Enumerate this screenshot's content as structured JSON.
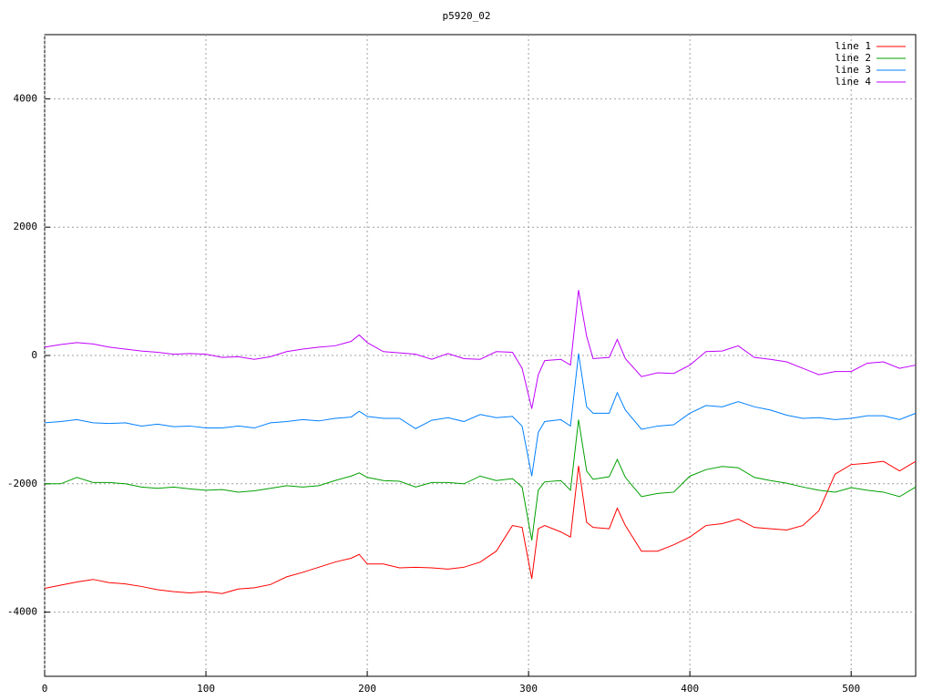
{
  "chart_data": {
    "type": "line",
    "title": "p5920_02",
    "x": [
      0,
      10,
      20,
      30,
      40,
      50,
      60,
      70,
      80,
      90,
      100,
      110,
      120,
      130,
      140,
      150,
      160,
      170,
      180,
      190,
      195,
      200,
      210,
      220,
      230,
      240,
      250,
      260,
      270,
      280,
      290,
      296,
      302,
      306,
      310,
      320,
      326,
      331,
      336,
      340,
      350,
      355,
      360,
      370,
      380,
      390,
      400,
      410,
      420,
      430,
      440,
      450,
      460,
      470,
      480,
      490,
      500,
      510,
      520,
      530,
      540
    ],
    "series": [
      {
        "name": "line 1",
        "color": "#ff0000",
        "values": [
          -3630,
          -3580,
          -3530,
          -3490,
          -3540,
          -3560,
          -3600,
          -3650,
          -3680,
          -3700,
          -3680,
          -3710,
          -3640,
          -3620,
          -3570,
          -3450,
          -3380,
          -3300,
          -3220,
          -3160,
          -3100,
          -3250,
          -3250,
          -3310,
          -3300,
          -3310,
          -3330,
          -3300,
          -3220,
          -3050,
          -2650,
          -2680,
          -3480,
          -2700,
          -2650,
          -2750,
          -2830,
          -1720,
          -2600,
          -2680,
          -2700,
          -2380,
          -2650,
          -3050,
          -3050,
          -2950,
          -2830,
          -2650,
          -2620,
          -2550,
          -2680,
          -2700,
          -2720,
          -2650,
          -2420,
          -1850,
          -1700,
          -1680,
          -1650,
          -1800,
          -1650
        ]
      },
      {
        "name": "line 2",
        "color": "#00a000",
        "values": [
          -2000,
          -2000,
          -1900,
          -1980,
          -1980,
          -2000,
          -2050,
          -2070,
          -2050,
          -2080,
          -2100,
          -2090,
          -2130,
          -2110,
          -2070,
          -2030,
          -2050,
          -2030,
          -1950,
          -1880,
          -1830,
          -1900,
          -1950,
          -1960,
          -2050,
          -1980,
          -1980,
          -2000,
          -1880,
          -1950,
          -1920,
          -2050,
          -2880,
          -2100,
          -1970,
          -1950,
          -2100,
          -1000,
          -1800,
          -1930,
          -1890,
          -1620,
          -1900,
          -2200,
          -2150,
          -2130,
          -1880,
          -1780,
          -1730,
          -1750,
          -1900,
          -1950,
          -1990,
          -2050,
          -2100,
          -2130,
          -2060,
          -2100,
          -2130,
          -2200,
          -2050
        ]
      },
      {
        "name": "line 3",
        "color": "#0080ff",
        "values": [
          -1050,
          -1030,
          -1000,
          -1050,
          -1060,
          -1050,
          -1100,
          -1070,
          -1110,
          -1100,
          -1130,
          -1130,
          -1100,
          -1130,
          -1050,
          -1030,
          -1000,
          -1020,
          -980,
          -960,
          -870,
          -950,
          -980,
          -980,
          -1140,
          -1010,
          -970,
          -1030,
          -920,
          -970,
          -950,
          -1100,
          -1880,
          -1200,
          -1030,
          -1000,
          -1100,
          30,
          -800,
          -900,
          -900,
          -580,
          -850,
          -1150,
          -1100,
          -1080,
          -900,
          -780,
          -800,
          -720,
          -800,
          -850,
          -930,
          -980,
          -970,
          -1000,
          -980,
          -940,
          -940,
          -1000,
          -900
        ]
      },
      {
        "name": "line 4",
        "color": "#c000ff",
        "values": [
          130,
          170,
          200,
          180,
          130,
          100,
          70,
          50,
          20,
          30,
          20,
          -30,
          -20,
          -60,
          -20,
          60,
          100,
          130,
          150,
          220,
          320,
          200,
          60,
          40,
          20,
          -60,
          30,
          -50,
          -60,
          60,
          50,
          -200,
          -830,
          -300,
          -80,
          -60,
          -150,
          1020,
          300,
          -50,
          -30,
          250,
          -50,
          -330,
          -270,
          -280,
          -150,
          60,
          70,
          150,
          -30,
          -60,
          -100,
          -200,
          -300,
          -250,
          -250,
          -120,
          -100,
          -200,
          -150
        ]
      }
    ],
    "xlim": [
      0,
      540
    ],
    "ylim": [
      -5000,
      5000
    ],
    "xticks": [
      0,
      100,
      200,
      300,
      400,
      500
    ],
    "yticks": [
      -4000,
      -2000,
      0,
      2000,
      4000
    ],
    "grid": true,
    "legend": "top-right"
  }
}
